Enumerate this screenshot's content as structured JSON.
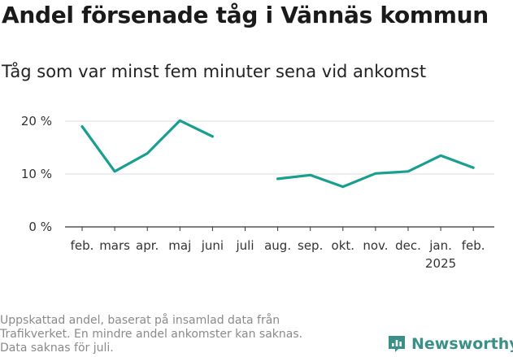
{
  "header": {
    "title": "Andel försenade tåg i Vännäs kommun",
    "subtitle": "Tåg som var minst fem minuter sena vid ankomst"
  },
  "footnote": {
    "lines": [
      "Uppskattad andel, baserat på insamlad data från",
      "Trafikverket. En mindre andel ankomster kan saknas.",
      "Data saknas för juli."
    ]
  },
  "brand": {
    "name": "Newsworthy",
    "icon": "newsworthy-logo-icon",
    "color": "#3a8f86"
  },
  "chart_data": {
    "type": "line",
    "categories": [
      "feb.",
      "mars",
      "apr.",
      "maj",
      "juni",
      "juli",
      "aug.",
      "sep.",
      "okt.",
      "nov.",
      "dec.",
      "jan.",
      "feb."
    ],
    "year_labels": [
      "",
      "",
      "",
      "",
      "",
      "",
      "",
      "",
      "",
      "",
      "",
      "2025",
      ""
    ],
    "series": [
      {
        "name": "",
        "color": "#1a9e8f",
        "values": [
          19.0,
          10.5,
          13.9,
          20.1,
          17.1,
          null,
          9.1,
          9.8,
          7.6,
          10.1,
          10.5,
          13.5,
          11.2
        ]
      }
    ],
    "ylim": [
      0,
      20
    ],
    "yticks": [
      0,
      10,
      20
    ],
    "ytick_labels": [
      "0 %",
      "10 %",
      "20 %"
    ],
    "grid": true,
    "xlabel": "",
    "ylabel": ""
  }
}
